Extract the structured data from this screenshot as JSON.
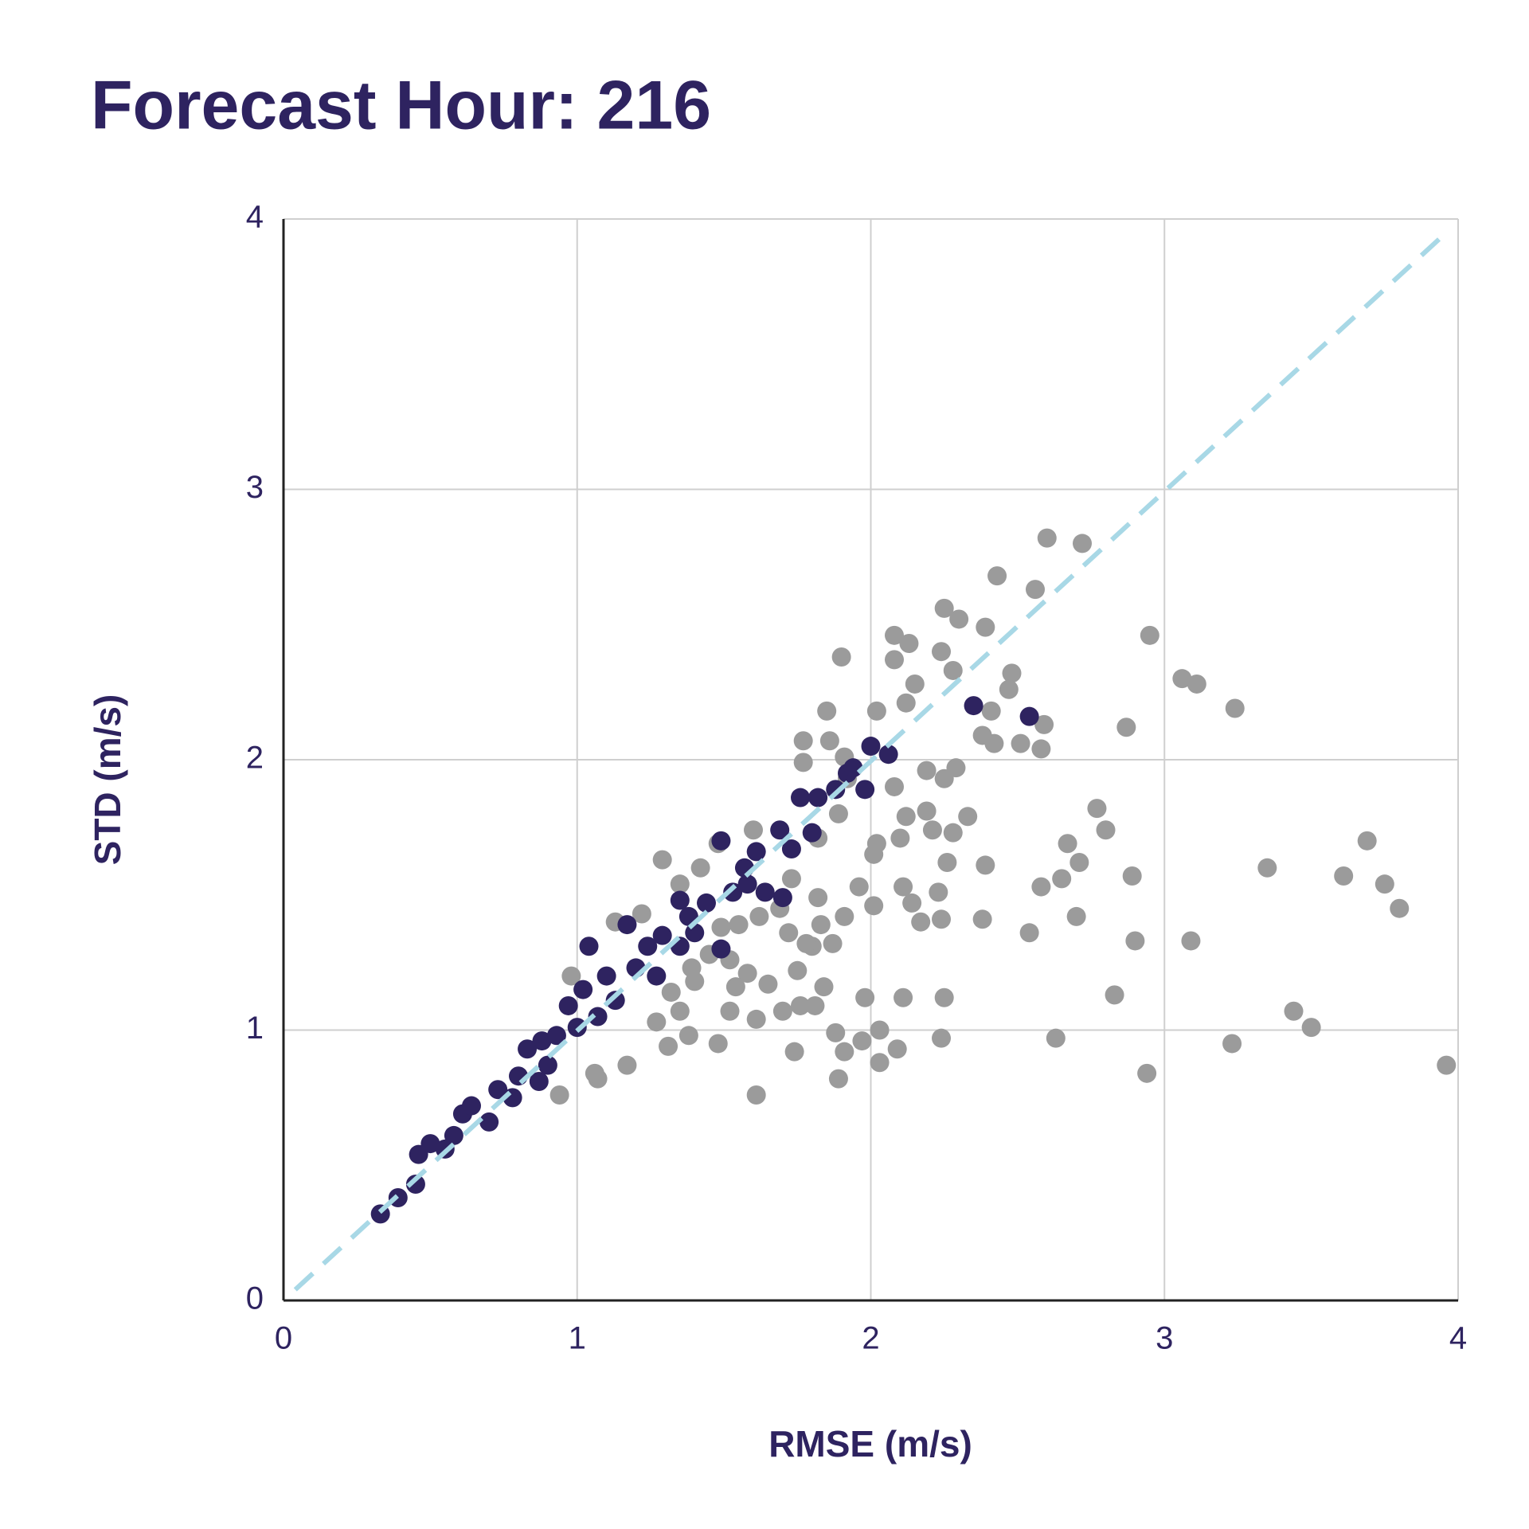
{
  "chart_data": {
    "type": "scatter",
    "title": "Forecast Hour: 216",
    "x_label": "RMSE (m/s)",
    "y_label": "STD (m/s)",
    "xlim": [
      0,
      4
    ],
    "ylim": [
      0,
      4
    ],
    "xticks": [
      0,
      1,
      2,
      3,
      4
    ],
    "yticks": [
      0,
      1,
      2,
      3,
      4
    ],
    "grid": true,
    "reference_line": {
      "x": [
        0.04,
        3.95
      ],
      "y": [
        0.04,
        3.94
      ],
      "color": "#a8d8e6",
      "dashed": true
    },
    "series": [
      {
        "color": "#9b9b9b",
        "x": [
          2.95,
          2.72,
          2.6,
          2.43,
          2.56,
          3.06,
          3.11,
          3.24,
          2.87,
          2.77,
          2.8,
          2.67,
          2.71,
          2.65,
          2.58,
          2.89,
          3.35,
          3.61,
          3.69,
          3.75,
          3.8,
          2.7,
          2.54,
          2.9,
          3.09,
          2.83,
          3.44,
          3.5,
          2.63,
          3.23,
          2.94,
          3.96,
          2.38,
          2.39,
          2.33,
          2.25,
          2.24,
          2.11,
          2.09,
          2.03,
          2.03,
          1.98,
          1.97,
          1.91,
          1.89,
          1.88,
          1.74,
          1.61,
          1.48,
          1.31,
          1.17,
          1.07,
          0.94,
          1.52,
          1.61,
          1.65,
          1.7,
          1.76,
          1.81,
          1.84,
          1.87,
          1.8,
          1.75,
          1.9,
          2.08,
          2.13,
          2.25,
          2.3,
          2.39,
          2.24,
          2.08,
          2.15,
          2.28,
          2.48,
          2.47,
          2.41,
          2.59,
          2.58,
          2.51,
          2.42,
          2.38,
          2.29,
          2.25,
          2.19,
          2.12,
          2.02,
          1.85,
          1.86,
          1.77,
          1.77,
          1.91,
          2.08,
          2.12,
          2.19,
          2.21,
          2.28,
          2.26,
          2.1,
          2.02,
          2.01,
          2.11,
          2.14,
          2.23,
          2.24,
          2.17,
          2.01,
          1.96,
          1.91,
          1.83,
          1.78,
          1.72,
          1.69,
          1.82,
          1.73,
          1.62,
          1.55,
          1.49,
          1.52,
          1.58,
          1.54,
          1.4,
          1.35,
          1.38,
          1.27,
          1.29,
          1.35,
          1.42,
          1.48,
          1.6,
          1.89,
          1.82,
          1.92,
          0.98,
          1.13,
          1.22,
          1.06,
          1.45,
          1.32,
          1.39
        ],
        "values": [
          2.46,
          2.8,
          2.82,
          2.68,
          2.63,
          2.3,
          2.28,
          2.19,
          2.12,
          1.82,
          1.74,
          1.69,
          1.62,
          1.56,
          1.53,
          1.57,
          1.6,
          1.57,
          1.7,
          1.54,
          1.45,
          1.42,
          1.36,
          1.33,
          1.33,
          1.13,
          1.07,
          1.01,
          0.97,
          0.95,
          0.84,
          0.87,
          1.41,
          1.61,
          1.79,
          1.12,
          0.97,
          1.12,
          0.93,
          0.88,
          1.0,
          1.12,
          0.96,
          0.92,
          0.82,
          0.99,
          0.92,
          0.76,
          0.95,
          0.94,
          0.87,
          0.82,
          0.76,
          1.07,
          1.04,
          1.17,
          1.07,
          1.09,
          1.09,
          1.16,
          1.32,
          1.31,
          1.22,
          2.38,
          2.46,
          2.43,
          2.56,
          2.52,
          2.49,
          2.4,
          2.37,
          2.28,
          2.33,
          2.32,
          2.26,
          2.18,
          2.13,
          2.04,
          2.06,
          2.06,
          2.09,
          1.97,
          1.93,
          1.96,
          2.21,
          2.18,
          2.18,
          2.07,
          2.07,
          1.99,
          2.01,
          1.9,
          1.79,
          1.81,
          1.74,
          1.73,
          1.62,
          1.71,
          1.69,
          1.65,
          1.53,
          1.47,
          1.51,
          1.41,
          1.4,
          1.46,
          1.53,
          1.42,
          1.39,
          1.32,
          1.36,
          1.45,
          1.49,
          1.56,
          1.42,
          1.39,
          1.38,
          1.26,
          1.21,
          1.16,
          1.18,
          1.07,
          0.98,
          1.03,
          1.63,
          1.54,
          1.6,
          1.69,
          1.74,
          1.8,
          1.71,
          1.93,
          1.2,
          1.4,
          1.43,
          0.84,
          1.28,
          1.14,
          1.23
        ]
      },
      {
        "color": "#2e2360",
        "x": [
          0.33,
          0.39,
          0.45,
          0.46,
          0.5,
          0.55,
          0.58,
          0.61,
          0.64,
          0.7,
          0.73,
          0.78,
          0.8,
          0.83,
          0.88,
          0.87,
          0.9,
          0.93,
          0.97,
          1.0,
          1.02,
          1.04,
          1.07,
          1.1,
          1.13,
          1.17,
          1.2,
          1.24,
          1.27,
          1.29,
          1.35,
          1.35,
          1.4,
          1.44,
          1.49,
          1.49,
          1.53,
          1.58,
          1.61,
          1.64,
          1.7,
          1.69,
          1.73,
          1.76,
          1.8,
          1.82,
          1.88,
          1.92,
          1.94,
          1.98,
          2.0,
          2.06,
          2.35,
          2.54,
          1.57,
          1.38
        ],
        "values": [
          0.32,
          0.38,
          0.43,
          0.54,
          0.58,
          0.56,
          0.61,
          0.69,
          0.72,
          0.66,
          0.78,
          0.75,
          0.83,
          0.93,
          0.96,
          0.81,
          0.87,
          0.98,
          1.09,
          1.01,
          1.15,
          1.31,
          1.05,
          1.2,
          1.11,
          1.39,
          1.23,
          1.31,
          1.2,
          1.35,
          1.48,
          1.31,
          1.36,
          1.47,
          1.3,
          1.7,
          1.51,
          1.54,
          1.66,
          1.51,
          1.49,
          1.74,
          1.67,
          1.86,
          1.73,
          1.86,
          1.89,
          1.95,
          1.97,
          1.89,
          2.05,
          2.02,
          2.2,
          2.16,
          1.6,
          1.42
        ]
      }
    ]
  }
}
